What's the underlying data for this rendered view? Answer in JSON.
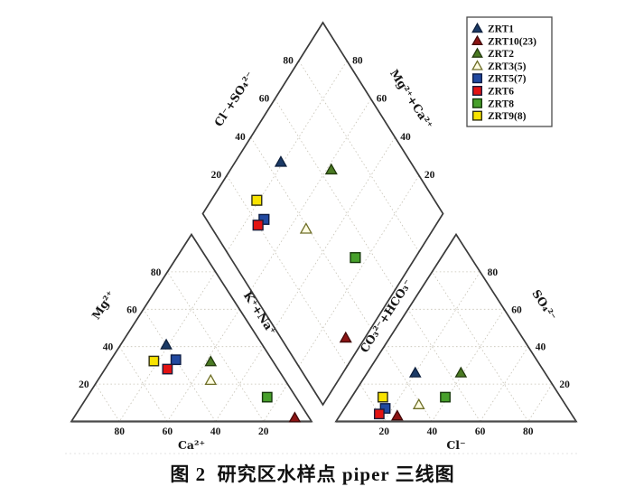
{
  "figure": {
    "caption": "图 2  研究区水样点 piper 三线图"
  },
  "chart_data": {
    "type": "piper-trilinear",
    "tick_values": [
      20,
      40,
      60,
      80
    ],
    "grid": {
      "show": true,
      "interval_percent": 20,
      "style": "dotted"
    },
    "axes": {
      "cation_triangle": {
        "bottom_label": "Ca²⁺",
        "left_label": "Mg²⁺",
        "right_label": "K⁺+Na⁺"
      },
      "anion_triangle": {
        "bottom_label": "Cl⁻",
        "right_label": "SO₄²⁻",
        "left_label": "CO₃²⁻+HCO₃⁻"
      },
      "diamond": {
        "upper_left_label": "Cl⁻+SO₄²⁻",
        "upper_right_label": "Mg²⁺+Ca²⁺"
      }
    },
    "legend_position": "top-right",
    "series": [
      {
        "id": "ZRT1",
        "label": "ZRT1",
        "marker": "triangle",
        "fill": "#1b3a66",
        "edge": "#0d1f3c",
        "cation_percent": {
          "ca": 40,
          "mg": 41,
          "na_k": 19
        },
        "anion_percent": {
          "cl": 20,
          "so4": 26,
          "hco3_co3": 54
        }
      },
      {
        "id": "ZRT10",
        "label": "ZRT10(23)",
        "marker": "triangle",
        "fill": "#8c1414",
        "edge": "#420808",
        "cation_percent": {
          "ca": 6,
          "mg": 2,
          "na_k": 92
        },
        "anion_percent": {
          "cl": 24,
          "so4": 3,
          "hco3_co3": 73
        }
      },
      {
        "id": "ZRT2",
        "label": "ZRT2",
        "marker": "triangle",
        "fill": "#4a7a22",
        "edge": "#22390d",
        "cation_percent": {
          "ca": 26,
          "mg": 32,
          "na_k": 42
        },
        "anion_percent": {
          "cl": 39,
          "so4": 26,
          "hco3_co3": 35
        }
      },
      {
        "id": "ZRT3",
        "label": "ZRT3(5)",
        "marker": "triangle",
        "fill": "#fffde2",
        "edge": "#6e6e28",
        "cation_percent": {
          "ca": 31,
          "mg": 22,
          "na_k": 47
        },
        "anion_percent": {
          "cl": 30,
          "so4": 9,
          "hco3_co3": 61
        }
      },
      {
        "id": "ZRT5",
        "label": "ZRT5(7)",
        "marker": "square",
        "fill": "#2149a0",
        "edge": "#0c1c45",
        "cation_percent": {
          "ca": 40,
          "mg": 33,
          "na_k": 27
        },
        "anion_percent": {
          "cl": 17,
          "so4": 7,
          "hco3_co3": 76
        }
      },
      {
        "id": "ZRT6",
        "label": "ZRT6",
        "marker": "square",
        "fill": "#e31313",
        "edge": "#1c1c3a",
        "cation_percent": {
          "ca": 46,
          "mg": 28,
          "na_k": 26
        },
        "anion_percent": {
          "cl": 16,
          "so4": 4,
          "hco3_co3": 80
        }
      },
      {
        "id": "ZRT8",
        "label": "ZRT8",
        "marker": "square",
        "fill": "#47a02b",
        "edge": "#17380c",
        "cation_percent": {
          "ca": 12,
          "mg": 13,
          "na_k": 75
        },
        "anion_percent": {
          "cl": 39,
          "so4": 13,
          "hco3_co3": 48
        }
      },
      {
        "id": "ZRT9",
        "label": "ZRT9(8)",
        "marker": "square",
        "fill": "#f8e300",
        "edge": "#2f2f12",
        "cation_percent": {
          "ca": 49,
          "mg": 32,
          "na_k": 18
        },
        "anion_percent": {
          "cl": 13,
          "so4": 13,
          "hco3_co3": 74
        }
      }
    ]
  }
}
